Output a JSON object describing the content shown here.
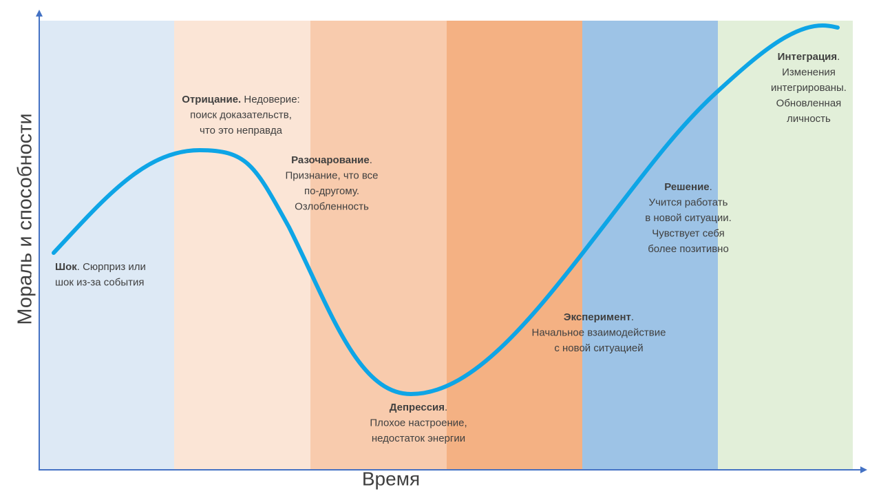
{
  "axes": {
    "y_label": "Мораль и способности",
    "x_label": "Время"
  },
  "stages": [
    {
      "title": "Шок",
      "title_rest": ". Сюрприз или",
      "lines": [
        "шок из-за события"
      ]
    },
    {
      "title": "Отрицание.",
      "title_rest": " Недоверие:",
      "lines": [
        "поиск доказательств,",
        "что это неправда"
      ]
    },
    {
      "title": "Разочарование",
      "title_rest": ".",
      "lines": [
        "Признание, что все",
        "по-другому.",
        "Озлобленность"
      ]
    },
    {
      "title": "Депрессия",
      "title_rest": ".",
      "lines": [
        "Плохое настроение,",
        "недостаток энергии"
      ]
    },
    {
      "title": "Эксперимент",
      "title_rest": ".",
      "lines": [
        "Начальное взаимодействие",
        "с новой ситуацией"
      ]
    },
    {
      "title": "Решение",
      "title_rest": ".",
      "lines": [
        "Учится работать",
        "в новой ситуации.",
        "Чувствует себя",
        "более позитивно"
      ]
    },
    {
      "title": "Интеграция",
      "title_rest": ".",
      "lines": [
        "Изменения",
        "интегрированы.",
        "Обновленная",
        "личность"
      ]
    }
  ]
}
